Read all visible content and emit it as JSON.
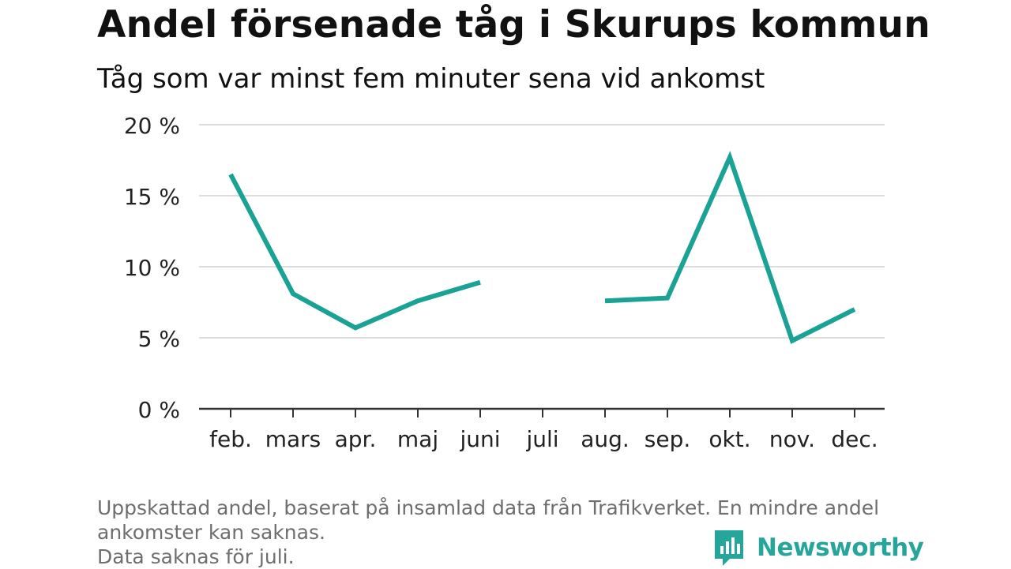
{
  "title": "Andel försenade tåg i Skurups kommun",
  "subtitle": "Tåg som var minst fem minuter sena vid ankomst",
  "footnote": {
    "line1": "Uppskattad andel, baserat på insamlad data från Trafikverket. En mindre andel",
    "line2": "ankomster kan saknas.",
    "line3": "Data saknas för juli."
  },
  "brand": {
    "name": "Newsworthy",
    "color": "#26a69a",
    "icon": "newsworthy-logo-icon"
  },
  "colors": {
    "line": "#1aa394",
    "grid": "#dddddd",
    "axis": "#333333",
    "text": "#222222",
    "muted": "#6e6e6e"
  },
  "chart_data": {
    "type": "line",
    "title": "Andel försenade tåg i Skurups kommun",
    "subtitle": "Tåg som var minst fem minuter sena vid ankomst",
    "xlabel": "",
    "ylabel": "",
    "categories": [
      "feb.",
      "mars",
      "apr.",
      "maj",
      "juni",
      "juli",
      "aug.",
      "sep.",
      "okt.",
      "nov.",
      "dec."
    ],
    "series": [
      {
        "values": [
          16.5,
          8.1,
          5.7,
          7.6,
          8.9,
          null,
          7.6,
          7.8,
          17.7,
          4.8,
          7.0
        ]
      }
    ],
    "yticks": [
      0,
      5,
      10,
      15,
      20
    ],
    "ytick_labels": [
      "0 %",
      "5 %",
      "10 %",
      "15 %",
      "20 %"
    ],
    "ylim": [
      0,
      20
    ],
    "grid": true,
    "legend": "none"
  }
}
